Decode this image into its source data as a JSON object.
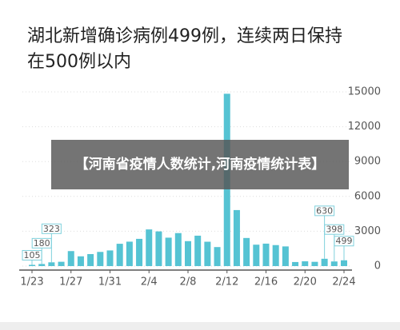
{
  "chart_data": {
    "type": "bar",
    "title": "湖北新增确诊病例499例，连续两日保持在500例以内",
    "overlay": "【河南省疫情人数统计,河南疫情统计表】",
    "categories": [
      "1/23",
      null,
      null,
      null,
      "1/27",
      null,
      null,
      null,
      "1/31",
      null,
      null,
      null,
      "2/4",
      null,
      null,
      null,
      "2/8",
      null,
      null,
      null,
      "2/12",
      null,
      null,
      null,
      "2/16",
      null,
      null,
      null,
      "2/20",
      null,
      null,
      null,
      "2/24"
    ],
    "values": [
      105,
      180,
      323,
      371,
      1291,
      840,
      1032,
      1220,
      1347,
      1921,
      2103,
      2345,
      3156,
      2987,
      2447,
      2841,
      2147,
      2618,
      2097,
      1638,
      14840,
      4823,
      2420,
      1843,
      1933,
      1807,
      1693,
      349,
      411,
      366,
      630,
      398,
      499
    ],
    "value_labels": [
      105,
      180,
      323,
      null,
      null,
      null,
      null,
      null,
      null,
      null,
      null,
      null,
      null,
      null,
      null,
      null,
      null,
      null,
      null,
      null,
      null,
      null,
      null,
      null,
      null,
      null,
      null,
      null,
      null,
      null,
      630,
      398,
      499
    ],
    "color": "#55c3d3",
    "ylim": [
      0,
      15000
    ],
    "yticks": [
      0,
      3000,
      6000,
      9000,
      12000,
      15000
    ],
    "grid": true
  }
}
